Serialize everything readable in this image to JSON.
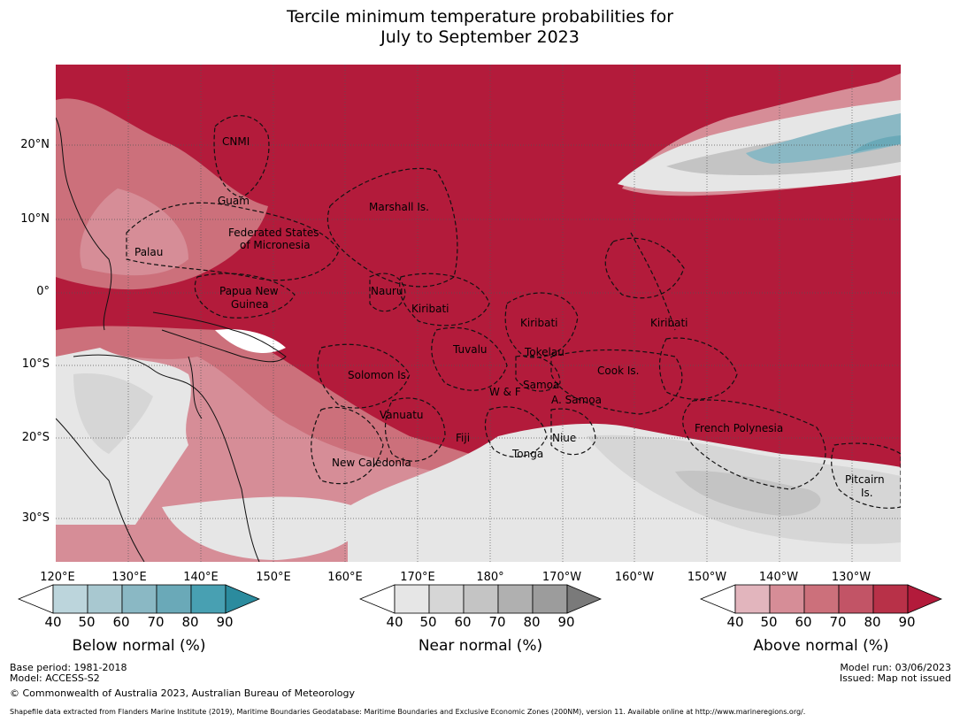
{
  "title": {
    "line1": "Tercile minimum temperature probabilities for",
    "line2": "July to September 2023"
  },
  "latitude_labels": [
    "20°N",
    "10°N",
    "0°",
    "10°S",
    "20°S",
    "30°S"
  ],
  "longitude_labels": [
    "120°E",
    "130°E",
    "140°E",
    "150°E",
    "160°E",
    "170°E",
    "180°",
    "170°W",
    "160°W",
    "150°W",
    "140°W",
    "130°W"
  ],
  "country_labels": [
    "CNMI",
    "Guam",
    "Marshall Is.",
    "Federated States",
    "of Micronesia",
    "Palau",
    "Papua New",
    "Guinea",
    "Nauru",
    "Kiribati",
    "Kiribati",
    "Kiribati",
    "Tuvalu",
    "Tokelau",
    "Solomon Is.",
    "W & F",
    "Samoa",
    "A. Samoa",
    "Cook Is.",
    "Vanuatu",
    "Fiji",
    "Niue",
    "French Polynesia",
    "Tonga",
    "New Caledonia",
    "Pitcairn",
    "Is."
  ],
  "colorbars": {
    "below": {
      "title": "Below normal (%)",
      "ticks": [
        "40",
        "50",
        "60",
        "70",
        "80",
        "90"
      ],
      "colors": [
        "#ffffff",
        "#bcd5dc",
        "#a8c8d0",
        "#8ab8c4",
        "#6aa9b8",
        "#48a0b2",
        "#2b8b9e"
      ]
    },
    "near": {
      "title": "Near normal (%)",
      "ticks": [
        "40",
        "50",
        "60",
        "70",
        "80",
        "90"
      ],
      "colors": [
        "#ffffff",
        "#e6e6e6",
        "#d6d6d6",
        "#c4c4c4",
        "#b0b0b0",
        "#9c9c9c",
        "#7a7a7a"
      ]
    },
    "above": {
      "title": "Above normal (%)",
      "ticks": [
        "40",
        "50",
        "60",
        "70",
        "80",
        "90"
      ],
      "colors": [
        "#ffffff",
        "#e2b5bd",
        "#d68d97",
        "#cc707b",
        "#c25466",
        "#b83148",
        "#b31b3b"
      ]
    }
  },
  "footer": {
    "base_period": "Base period: 1981-2018",
    "model": "Model: ACCESS-S2",
    "copyright": "© Commonwealth of Australia 2023, Australian Bureau of Meteorology",
    "model_run": "Model run: 03/06/2023",
    "issued": "Issued: Map not issued",
    "shapefile": "Shapefile data extracted from Flanders Marine Institute (2019), Maritime Boundaries Geodatabase: Maritime Boundaries and Exclusive Economic Zones (200NM), version 11. Available online at http://www.marineregions.org/."
  }
}
